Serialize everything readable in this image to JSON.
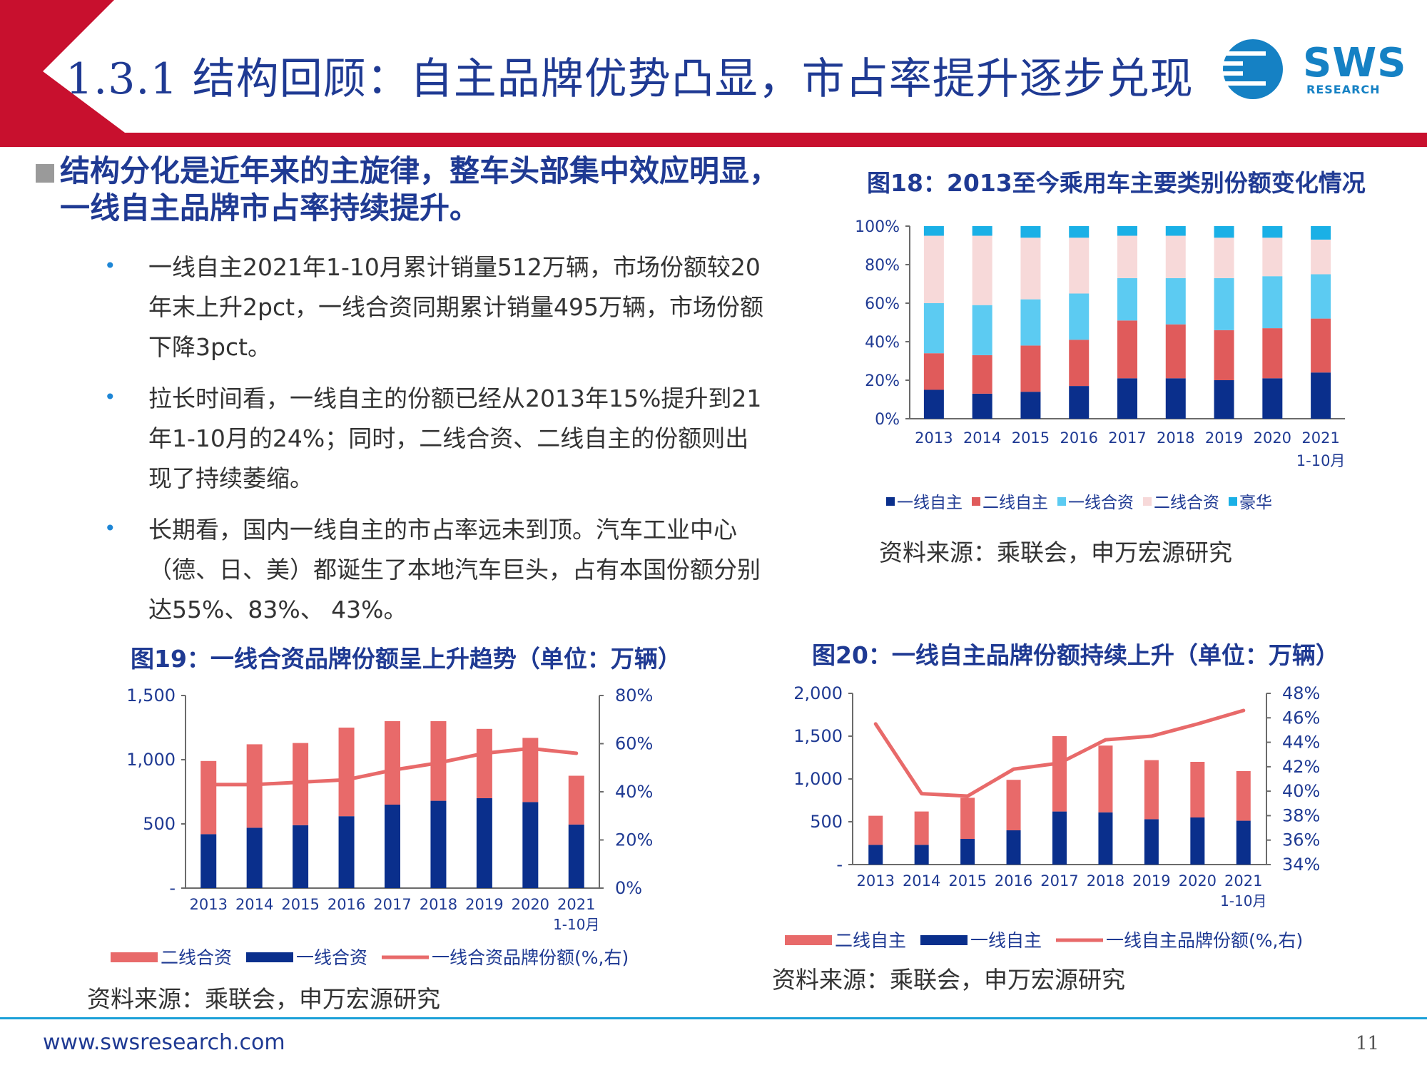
{
  "header": {
    "title": "1.3.1 结构回顾：自主品牌优势凸显，市占率提升逐步兑现",
    "logo": {
      "name": "SWS",
      "sub": "RESEARCH"
    },
    "colors": {
      "brand_red": "#c8102e",
      "title_blue": "#1f3a93",
      "logo_blue": "#1581c4"
    }
  },
  "section": {
    "heading": "结构分化是近年来的主旋律，整车头部集中效应明显，一线自主品牌市占率持续提升。",
    "bullets": [
      "一线自主2021年1-10月累计销量512万辆，市场份额较20年末上升2pct，一线合资同期累计销量495万辆，市场份额下降3pct。",
      "拉长时间看，一线自主的份额已经从2013年15%提升到21年1-10月的24%；同时，二线合资、二线自主的份额则出现了持续萎缩。",
      "长期看，国内一线自主的市占率远未到顶。汽车工业中心（德、日、美）都诞生了本地汽车巨头，占有本国份额分别达55%、83%、 43%。"
    ]
  },
  "chart_data": [
    {
      "id": "fig18",
      "type": "bar",
      "stacked": true,
      "title": "图18：2013至今乘用车主要类别份额变化情况",
      "categories": [
        "2013",
        "2014",
        "2015",
        "2016",
        "2017",
        "2018",
        "2019",
        "2020",
        "2021"
      ],
      "category_sub": [
        "",
        "",
        "",
        "",
        "",
        "",
        "",
        "",
        "1-10月"
      ],
      "ylim": [
        0,
        100
      ],
      "yticks": [
        "0%",
        "20%",
        "40%",
        "60%",
        "80%",
        "100%"
      ],
      "series": [
        {
          "name": "一线自主",
          "color": "#0a2f8c",
          "values": [
            15,
            13,
            14,
            17,
            21,
            21,
            20,
            21,
            24
          ]
        },
        {
          "name": "二线自主",
          "color": "#e05b5b",
          "values": [
            19,
            20,
            24,
            24,
            30,
            28,
            26,
            26,
            28
          ]
        },
        {
          "name": "一线合资",
          "color": "#5ccbf2",
          "values": [
            26,
            26,
            24,
            24,
            22,
            24,
            27,
            27,
            23
          ]
        },
        {
          "name": "二线合资",
          "color": "#f7d9d9",
          "values": [
            35,
            36,
            32,
            29,
            22,
            22,
            21,
            20,
            18
          ]
        },
        {
          "name": "豪华",
          "color": "#1ab0e6",
          "values": [
            5,
            5,
            6,
            6,
            5,
            5,
            6,
            6,
            7
          ]
        }
      ],
      "legend_position": "bottom",
      "source": "资料来源：乘联会，申万宏源研究"
    },
    {
      "id": "fig19",
      "type": "bar",
      "stacked": true,
      "title": "图19：一线合资品牌份额呈上升趋势（单位：万辆）",
      "categories": [
        "2013",
        "2014",
        "2015",
        "2016",
        "2017",
        "2018",
        "2019",
        "2020",
        "2021"
      ],
      "category_sub": [
        "",
        "",
        "",
        "",
        "",
        "",
        "",
        "",
        "1-10月"
      ],
      "ylim": [
        0,
        1500
      ],
      "yticks": [
        "-",
        "500",
        "1,000",
        "1,500"
      ],
      "y2lim": [
        0,
        80
      ],
      "y2ticks": [
        "0%",
        "20%",
        "40%",
        "60%",
        "80%"
      ],
      "series": [
        {
          "name": "一线合资",
          "color": "#0a2f8c",
          "values": [
            420,
            470,
            490,
            560,
            650,
            680,
            700,
            670,
            495
          ]
        },
        {
          "name": "二线合资",
          "color": "#e86a6a",
          "values": [
            570,
            650,
            640,
            690,
            650,
            620,
            540,
            500,
            380
          ]
        }
      ],
      "line": {
        "name": "一线合资品牌份额(%,右)",
        "color": "#e86a6a",
        "values": [
          43,
          43,
          44,
          45,
          49,
          52,
          56,
          58,
          56
        ]
      },
      "legend": [
        "二线合资",
        "一线合资",
        "一线合资品牌份额(%,右)"
      ],
      "legend_position": "bottom",
      "source": "资料来源：乘联会，申万宏源研究"
    },
    {
      "id": "fig20",
      "type": "bar",
      "stacked": true,
      "title": "图20：一线自主品牌份额持续上升（单位：万辆）",
      "categories": [
        "2013",
        "2014",
        "2015",
        "2016",
        "2017",
        "2018",
        "2019",
        "2020",
        "2021"
      ],
      "category_sub": [
        "",
        "",
        "",
        "",
        "",
        "",
        "",
        "",
        "1-10月"
      ],
      "ylim": [
        0,
        2000
      ],
      "yticks": [
        "-",
        "500",
        "1,000",
        "1,500",
        "2,000"
      ],
      "y2lim": [
        34,
        48
      ],
      "y2ticks": [
        "34%",
        "36%",
        "38%",
        "40%",
        "42%",
        "44%",
        "46%",
        "48%"
      ],
      "series": [
        {
          "name": "一线自主",
          "color": "#0a2f8c",
          "values": [
            230,
            230,
            300,
            400,
            620,
            610,
            530,
            550,
            512
          ]
        },
        {
          "name": "二线自主",
          "color": "#e86a6a",
          "values": [
            340,
            390,
            480,
            590,
            880,
            780,
            690,
            650,
            580
          ]
        }
      ],
      "line": {
        "name": "一线自主品牌份额(%,右)",
        "color": "#e86a6a",
        "values": [
          45.5,
          39.8,
          39.6,
          41.8,
          42.3,
          44.2,
          44.5,
          45.5,
          46.6
        ]
      },
      "legend": [
        "二线自主",
        "一线自主",
        "一线自主品牌份额(%,右)"
      ],
      "legend_position": "bottom",
      "source": "资料来源：乘联会，申万宏源研究"
    }
  ],
  "footer": {
    "url": "www.swsresearch.com",
    "page": "11"
  }
}
